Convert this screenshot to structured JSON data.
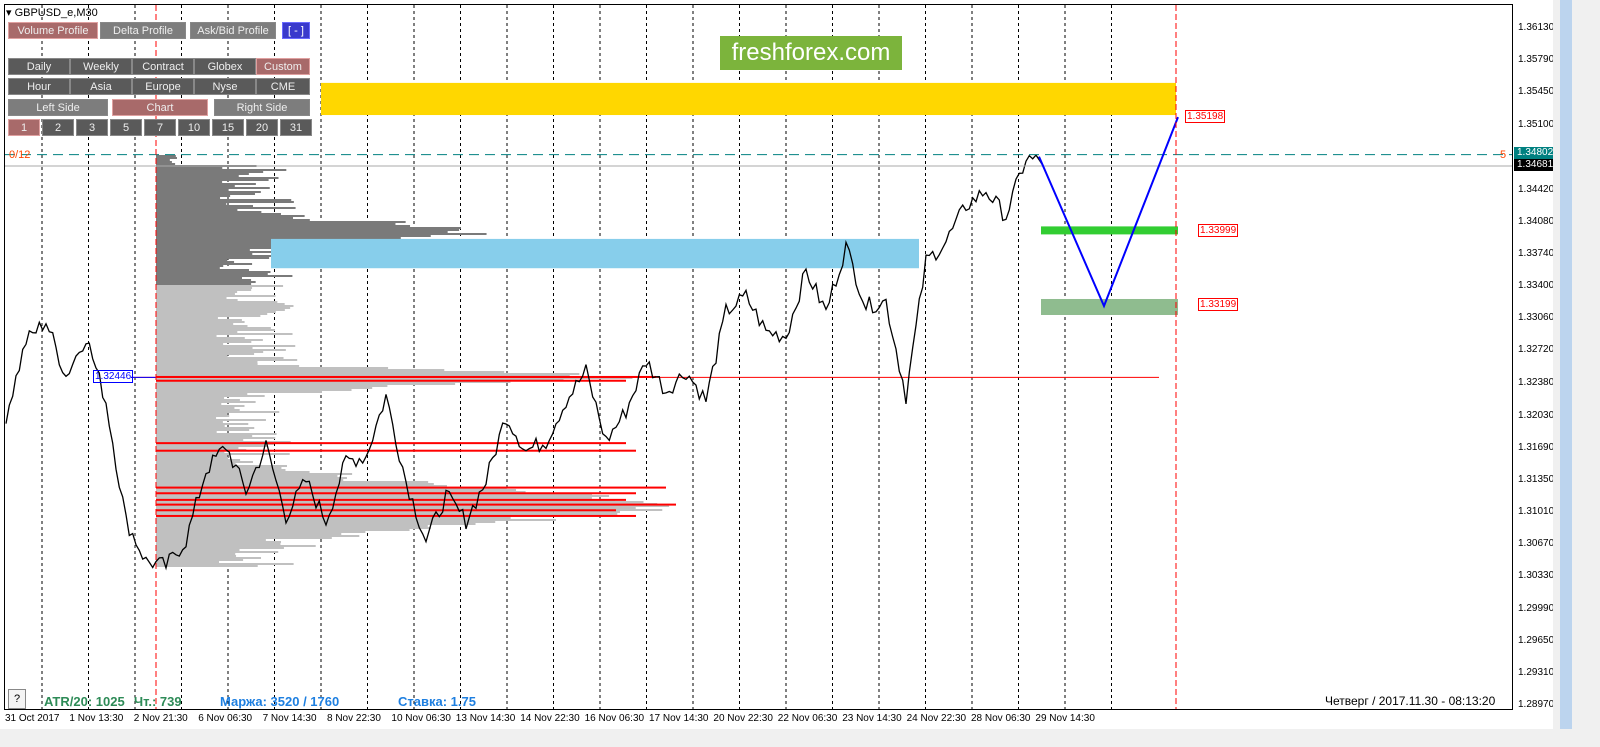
{
  "window": {
    "title": "GBPUSD_e,M30"
  },
  "toolbar": {
    "row1": [
      {
        "label": "Volume Profile",
        "active": true
      },
      {
        "label": "Delta Profile"
      },
      {
        "label": "Ask/Bid Profile"
      },
      {
        "label": "[ - ]"
      }
    ],
    "row2": [
      {
        "label": "Daily"
      },
      {
        "label": "Weekly"
      },
      {
        "label": "Contract"
      },
      {
        "label": "Globex"
      },
      {
        "label": "Custom",
        "active": true
      }
    ],
    "row3": [
      {
        "label": "Hour"
      },
      {
        "label": "Asia"
      },
      {
        "label": "Europe"
      },
      {
        "label": "Nyse"
      },
      {
        "label": "CME"
      }
    ],
    "row4": [
      {
        "label": "Left Side"
      },
      {
        "label": "Chart",
        "active": true
      },
      {
        "label": "Right Side"
      }
    ],
    "row5": [
      {
        "label": "1",
        "active": true
      },
      {
        "label": "2"
      },
      {
        "label": "3"
      },
      {
        "label": "5"
      },
      {
        "label": "7"
      },
      {
        "label": "10"
      },
      {
        "label": "15"
      },
      {
        "label": "20"
      },
      {
        "label": "31"
      }
    ]
  },
  "watermark": "freshforex.com",
  "counter_left": "0/12",
  "counter_right": "5",
  "price_axis": [
    "1.36130",
    "1.35790",
    "1.35450",
    "1.35100",
    "1.34420",
    "1.34080",
    "1.33740",
    "1.33400",
    "1.33060",
    "1.32720",
    "1.32380",
    "1.32030",
    "1.31690",
    "1.31350",
    "1.31010",
    "1.30670",
    "1.30330",
    "1.29990",
    "1.29650",
    "1.29310",
    "1.28970"
  ],
  "price_range": [
    1.2897,
    1.3613
  ],
  "ask_price": "1.34802",
  "bid_price": "1.34681",
  "levels": {
    "target": "1.35198",
    "mid": "1.33999",
    "low": "1.33199",
    "poc": "1.32446"
  },
  "time_axis": [
    "31 Oct 2017",
    "1 Nov 13:30",
    "2 Nov 21:30",
    "6 Nov 06:30",
    "7 Nov 14:30",
    "8 Nov 22:30",
    "10 Nov 06:30",
    "13 Nov 14:30",
    "14 Nov 22:30",
    "16 Nov 06:30",
    "17 Nov 14:30",
    "20 Nov 22:30",
    "22 Nov 06:30",
    "23 Nov 14:30",
    "24 Nov 22:30",
    "28 Nov 06:30",
    "29 Nov 14:30"
  ],
  "price_path": [
    1.3204,
    1.3283,
    1.3304,
    1.3246,
    1.3288,
    1.3219,
    1.3093,
    1.305,
    1.3045,
    1.3072,
    1.3146,
    1.3172,
    1.3124,
    1.3172,
    1.3098,
    1.3135,
    1.3093,
    1.3156,
    1.3161,
    1.3225,
    1.3135,
    1.3072,
    1.3119,
    1.3093,
    1.3135,
    1.3204,
    1.3167,
    1.3177,
    1.322,
    1.3251,
    1.3177,
    1.3209,
    1.3262,
    1.323,
    1.3251,
    1.322,
    1.3314,
    1.333,
    1.3293,
    1.3288,
    1.3357,
    1.3314,
    1.3383,
    1.332,
    1.3325,
    1.3225,
    1.3367,
    1.3388,
    1.3426,
    1.3442,
    1.3415,
    1.3476,
    1.3472
  ],
  "footer": {
    "help": "?",
    "atr": "ATR/20: 1025",
    "count": "Чт.: 739",
    "margin": "Маржа: 3520 / 1760",
    "rate": "Ставка: 1.75",
    "datetime": "Четверг  /  2017.11.30  -  08:13:20"
  },
  "colors": {
    "supply_zone": "#ffd700",
    "value_zone": "#87ceeb",
    "target_green": "#32cd32",
    "target_muted": "#8fbc8f",
    "projection": "#0000ff",
    "poc": "#ff0000",
    "atr": "#2e8b57",
    "info_blue": "#1e7fe0"
  }
}
